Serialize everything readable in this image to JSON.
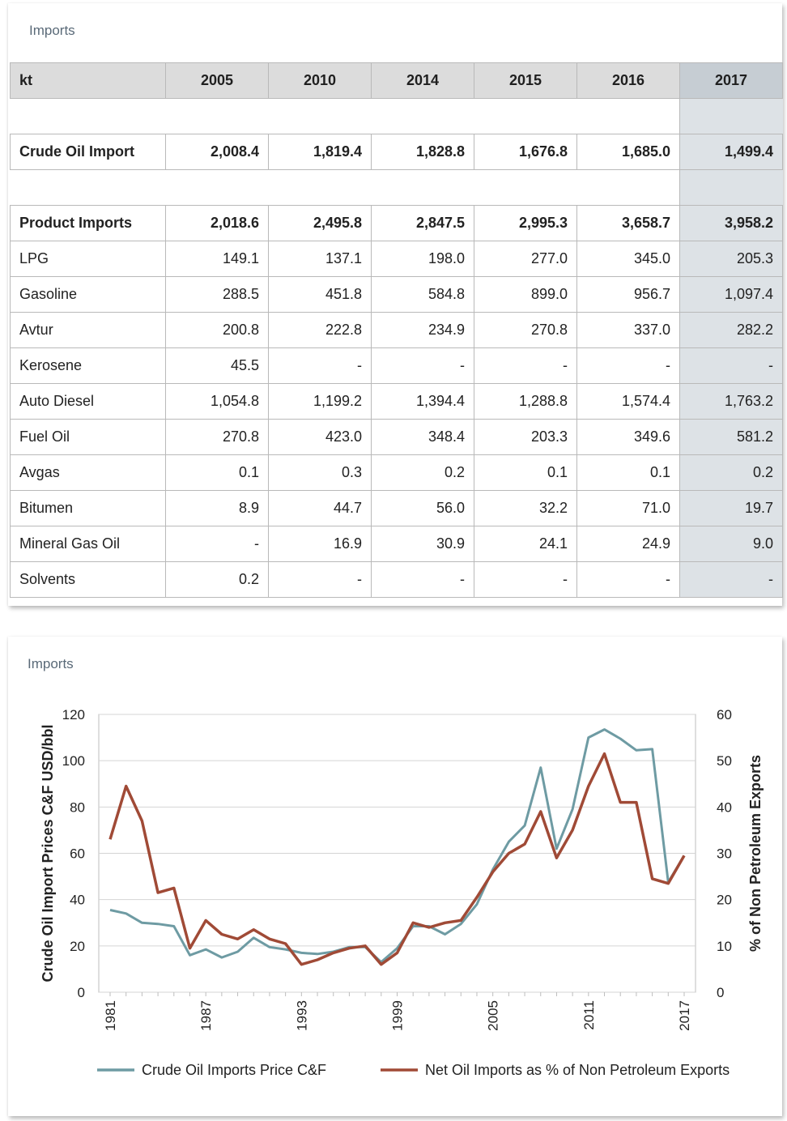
{
  "table_card": {
    "title": "Imports",
    "header": [
      "kt",
      "2005",
      "2010",
      "2014",
      "2015",
      "2016",
      "2017"
    ],
    "rows": [
      {
        "kind": "blank",
        "cells": [
          "",
          "",
          "",
          "",
          "",
          "",
          ""
        ]
      },
      {
        "kind": "bold",
        "cells": [
          "Crude Oil Import",
          "2,008.4",
          "1,819.4",
          "1,828.8",
          "1,676.8",
          "1,685.0",
          "1,499.4"
        ]
      },
      {
        "kind": "blank",
        "cells": [
          "",
          "",
          "",
          "",
          "",
          "",
          ""
        ]
      },
      {
        "kind": "bold",
        "cells": [
          "Product Imports",
          "2,018.6",
          "2,495.8",
          "2,847.5",
          "2,995.3",
          "3,658.7",
          "3,958.2"
        ]
      },
      {
        "kind": "normal",
        "cells": [
          "LPG",
          "149.1",
          "137.1",
          "198.0",
          "277.0",
          "345.0",
          "205.3"
        ]
      },
      {
        "kind": "normal",
        "cells": [
          "Gasoline",
          "288.5",
          "451.8",
          "584.8",
          "899.0",
          "956.7",
          "1,097.4"
        ]
      },
      {
        "kind": "normal",
        "cells": [
          "Avtur",
          "200.8",
          "222.8",
          "234.9",
          "270.8",
          "337.0",
          "282.2"
        ]
      },
      {
        "kind": "normal",
        "cells": [
          "Kerosene",
          "45.5",
          "-",
          "-",
          "-",
          "-",
          "-"
        ]
      },
      {
        "kind": "normal",
        "cells": [
          "Auto Diesel",
          "1,054.8",
          "1,199.2",
          "1,394.4",
          "1,288.8",
          "1,574.4",
          "1,763.2"
        ]
      },
      {
        "kind": "normal",
        "cells": [
          "Fuel Oil",
          "270.8",
          "423.0",
          "348.4",
          "203.3",
          "349.6",
          "581.2"
        ]
      },
      {
        "kind": "normal",
        "cells": [
          "Avgas",
          "0.1",
          "0.3",
          "0.2",
          "0.1",
          "0.1",
          "0.2"
        ]
      },
      {
        "kind": "normal",
        "cells": [
          "Bitumen",
          "8.9",
          "44.7",
          "56.0",
          "32.2",
          "71.0",
          "19.7"
        ]
      },
      {
        "kind": "normal",
        "cells": [
          "Mineral Gas Oil",
          "-",
          "16.9",
          "30.9",
          "24.1",
          "24.9",
          "9.0"
        ]
      },
      {
        "kind": "normal",
        "cells": [
          "Solvents",
          "0.2",
          "-",
          "-",
          "-",
          "-",
          "-"
        ]
      }
    ]
  },
  "chart_card": {
    "title": "Imports"
  },
  "chart_data": {
    "type": "line",
    "title": "",
    "xlabel": "",
    "ylabel": "Crude Oil Import Prices C&F USD/bbl",
    "y2label": "% of Non Petroleum Exports",
    "x": [
      1981,
      1982,
      1983,
      1984,
      1985,
      1986,
      1987,
      1988,
      1989,
      1990,
      1991,
      1992,
      1993,
      1994,
      1995,
      1996,
      1997,
      1998,
      1999,
      2000,
      2001,
      2002,
      2003,
      2004,
      2005,
      2006,
      2007,
      2008,
      2009,
      2010,
      2011,
      2012,
      2013,
      2014,
      2015,
      2016,
      2017
    ],
    "xticks": [
      "1981",
      "1987",
      "1993",
      "1999",
      "2005",
      "2011",
      "2017"
    ],
    "ylim": [
      0,
      120
    ],
    "yticks": [
      "0",
      "20",
      "40",
      "60",
      "80",
      "100",
      "120"
    ],
    "y2lim": [
      0,
      60
    ],
    "y2ticks": [
      "0",
      "10",
      "20",
      "30",
      "40",
      "50",
      "60"
    ],
    "legend_position": "bottom",
    "grid": true,
    "series": [
      {
        "name": "Crude Oil Imports Price C&F",
        "axis": "left",
        "color": "#6e9ba3",
        "values": [
          35.5,
          34,
          30,
          29.5,
          28.5,
          16,
          18.5,
          15,
          17.5,
          23.5,
          19.5,
          18.5,
          17,
          16.5,
          17.5,
          19.5,
          19.5,
          13,
          19,
          28.5,
          28.5,
          25,
          29.5,
          38,
          53,
          65,
          72,
          97,
          62,
          79,
          110,
          113.5,
          109.5,
          104.5,
          105,
          47.5,
          59
        ]
      },
      {
        "name": "Net Oil Imports as % of Non Petroleum Exports",
        "axis": "right",
        "color": "#a04a36",
        "values": [
          33,
          44.5,
          37,
          21.5,
          22.5,
          9.5,
          15.5,
          12.5,
          11.5,
          13.5,
          11.5,
          10.5,
          6,
          7,
          8.5,
          9.5,
          10,
          6,
          8.5,
          15,
          14,
          15,
          15.5,
          20.5,
          26,
          30,
          32,
          39,
          29,
          35,
          44.5,
          51.5,
          41,
          41,
          24.5,
          23.5,
          29.5
        ]
      }
    ]
  }
}
